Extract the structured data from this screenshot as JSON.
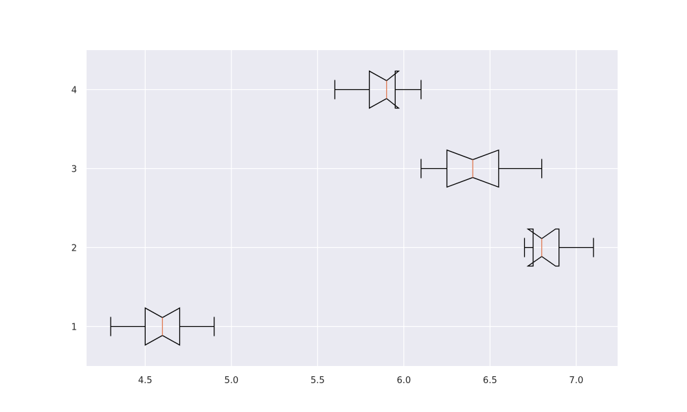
{
  "chart_data": {
    "type": "boxplot",
    "orientation": "horizontal",
    "notched": true,
    "title": "",
    "xlabel": "",
    "ylabel": "",
    "xlim": [
      4.16,
      7.24
    ],
    "ylim": [
      0.5,
      4.5
    ],
    "xticks": [
      "4.5",
      "5.0",
      "5.5",
      "6.0",
      "6.5",
      "7.0"
    ],
    "yticks": [
      "1",
      "2",
      "3",
      "4"
    ],
    "grid": true,
    "colors": {
      "background": "#eaeaf2",
      "grid": "#ffffff",
      "box": "#000000",
      "median": "#e07b54"
    },
    "boxes": [
      {
        "position": 1,
        "whisker_low": 4.3,
        "q1": 4.5,
        "median": 4.6,
        "q3": 4.7,
        "whisker_high": 4.9,
        "notch_low": 4.5,
        "notch_high": 4.7
      },
      {
        "position": 2,
        "whisker_low": 6.7,
        "q1": 6.75,
        "median": 6.8,
        "q3": 6.9,
        "whisker_high": 7.1,
        "notch_low": 6.72,
        "notch_high": 6.88
      },
      {
        "position": 3,
        "whisker_low": 6.1,
        "q1": 6.25,
        "median": 6.4,
        "q3": 6.55,
        "whisker_high": 6.8,
        "notch_low": 6.25,
        "notch_high": 6.55
      },
      {
        "position": 4,
        "whisker_low": 5.6,
        "q1": 5.8,
        "median": 5.9,
        "q3": 5.95,
        "whisker_high": 6.1,
        "notch_low": 5.8,
        "notch_high": 5.97
      }
    ]
  }
}
